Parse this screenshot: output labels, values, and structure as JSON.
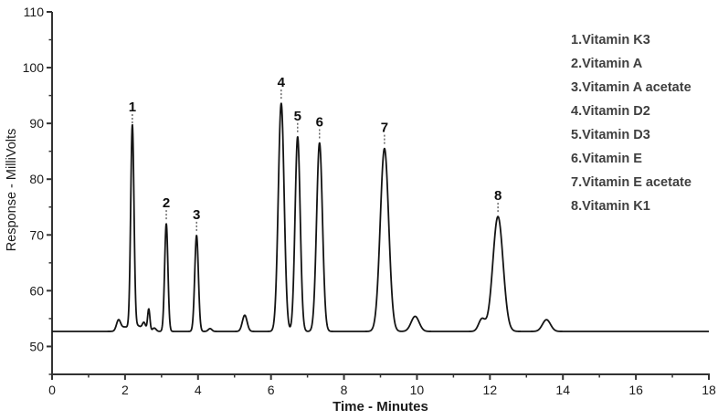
{
  "chart_data": {
    "type": "line",
    "title": "",
    "xlabel": "Time - Minutes",
    "ylabel": "Response - MilliVolts",
    "xlim": [
      0,
      18
    ],
    "ylim": [
      45,
      110
    ],
    "x_ticks_major": [
      0,
      2,
      4,
      6,
      8,
      10,
      12,
      14,
      16,
      18
    ],
    "x_ticks_minor": [
      1,
      3,
      5,
      7,
      9,
      11,
      13,
      15,
      17
    ],
    "y_ticks_major": [
      50,
      60,
      70,
      80,
      90,
      100,
      110
    ],
    "y_ticks_minor": [
      45,
      55,
      65,
      75,
      85,
      95,
      105
    ],
    "grid": false,
    "legend_position": "top-right",
    "baseline_mv": 52.7,
    "line_color": "#141414",
    "axis_color": "#333333",
    "marker_color": "#444444",
    "peaks": [
      {
        "label": "1",
        "name": "Vitamin K3",
        "time_min": 2.2,
        "apex_mv": 89.2,
        "sigma_min": 0.045
      },
      {
        "label": "2",
        "name": "Vitamin A",
        "time_min": 3.13,
        "apex_mv": 72.0,
        "sigma_min": 0.045
      },
      {
        "label": "3",
        "name": "Vitamin A acetate",
        "time_min": 3.96,
        "apex_mv": 69.9,
        "sigma_min": 0.05
      },
      {
        "label": "4",
        "name": "Vitamin D2",
        "time_min": 6.28,
        "apex_mv": 93.6,
        "sigma_min": 0.08
      },
      {
        "label": "5",
        "name": "Vitamin D3",
        "time_min": 6.73,
        "apex_mv": 87.6,
        "sigma_min": 0.07
      },
      {
        "label": "6",
        "name": "Vitamin E",
        "time_min": 7.33,
        "apex_mv": 86.5,
        "sigma_min": 0.08
      },
      {
        "label": "7",
        "name": "Vitamin E acetate",
        "time_min": 9.11,
        "apex_mv": 85.5,
        "sigma_min": 0.115
      },
      {
        "label": "8",
        "name": "Vitamin K1",
        "time_min": 12.22,
        "apex_mv": 73.3,
        "sigma_min": 0.14
      }
    ],
    "minor_features": [
      {
        "time_min": 1.82,
        "rise_mv": 1.8,
        "sigma_min": 0.055
      },
      {
        "time_min": 2.0,
        "rise_mv": 0.8,
        "sigma_min": 0.13
      },
      {
        "time_min": 2.35,
        "rise_mv": 1.0,
        "sigma_min": 0.1
      },
      {
        "time_min": 2.52,
        "rise_mv": 1.4,
        "sigma_min": 0.045
      },
      {
        "time_min": 2.65,
        "rise_mv": 4.0,
        "sigma_min": 0.032
      },
      {
        "time_min": 2.8,
        "rise_mv": 0.6,
        "sigma_min": 0.05
      },
      {
        "time_min": 4.33,
        "rise_mv": 0.5,
        "sigma_min": 0.05
      },
      {
        "time_min": 5.28,
        "rise_mv": 2.9,
        "sigma_min": 0.065
      },
      {
        "time_min": 9.95,
        "rise_mv": 2.7,
        "sigma_min": 0.11
      },
      {
        "time_min": 11.78,
        "rise_mv": 2.2,
        "sigma_min": 0.09
      },
      {
        "time_min": 13.55,
        "rise_mv": 2.1,
        "sigma_min": 0.11
      }
    ],
    "legend_lines": [
      "1.Vitamin K3",
      "2.Vitamin A",
      "3.Vitamin A acetate",
      "4.Vitamin D2",
      "5.Vitamin D3",
      "6.Vitamin E",
      "7.Vitamin E acetate",
      "8.Vitamin K1"
    ]
  }
}
